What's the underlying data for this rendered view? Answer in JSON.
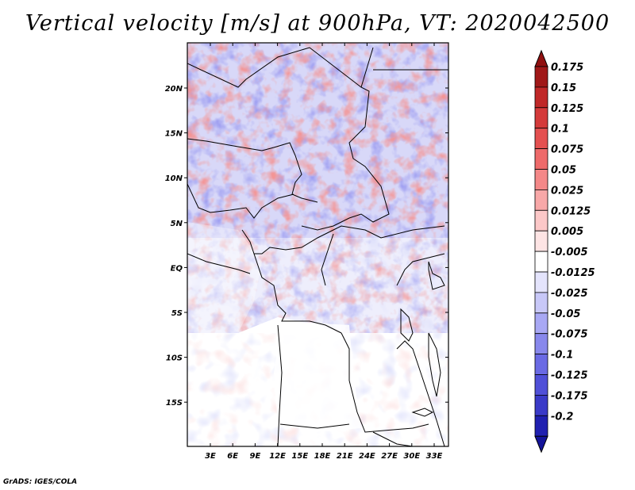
{
  "title": "Vertical velocity [m/s] at 900hPa, VT: 2020042500",
  "credit": "GrADS: IGES/COLA",
  "map": {
    "lat_labels": [
      "20N",
      "15N",
      "10N",
      "5N",
      "EQ",
      "5S",
      "10S",
      "15S"
    ],
    "lon_labels": [
      "3E",
      "6E",
      "9E",
      "12E",
      "15E",
      "18E",
      "21E",
      "24E",
      "27E",
      "30E",
      "33E"
    ]
  },
  "colorbar": {
    "levels": [
      {
        "label": "0.175",
        "color": "#a01818"
      },
      {
        "label": "0.15",
        "color": "#c02828"
      },
      {
        "label": "0.125",
        "color": "#d43a3a"
      },
      {
        "label": "0.1",
        "color": "#e45050"
      },
      {
        "label": "0.075",
        "color": "#ee6a6a"
      },
      {
        "label": "0.05",
        "color": "#f48888"
      },
      {
        "label": "0.025",
        "color": "#f8a8a8"
      },
      {
        "label": "0.0125",
        "color": "#fcc8c8"
      },
      {
        "label": "0.005",
        "color": "#fde4e4"
      },
      {
        "label": "-0.005",
        "color": "#ffffff"
      },
      {
        "label": "-0.0125",
        "color": "#e4e4fc"
      },
      {
        "label": "-0.025",
        "color": "#c8c8f8"
      },
      {
        "label": "-0.05",
        "color": "#a8a8f4"
      },
      {
        "label": "-0.075",
        "color": "#8888ec"
      },
      {
        "label": "-0.1",
        "color": "#6a6ae4"
      },
      {
        "label": "-0.125",
        "color": "#5050d8"
      },
      {
        "label": "-0.175",
        "color": "#3a3ac8"
      },
      {
        "label": "-0.2",
        "color": "#2020b0"
      }
    ],
    "top_color": "#901010",
    "bottom_color": "#14149a"
  }
}
